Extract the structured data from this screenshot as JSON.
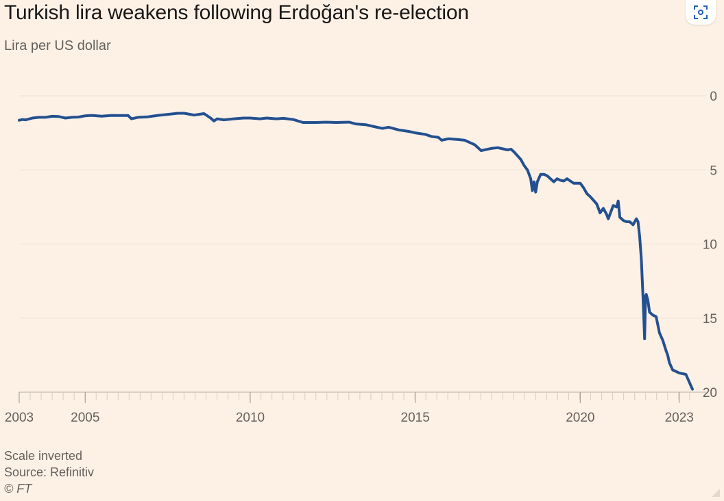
{
  "header": {
    "title": "Turkish lira weakens following Erdoğan's re-election",
    "subtitle": "Lira per US dollar"
  },
  "footer": {
    "note": "Scale inverted",
    "source": "Source: Refinitiv",
    "copyright": "© FT"
  },
  "icons": {
    "expand": "expand-view-icon",
    "resize": "resize-grip-icon"
  },
  "colors": {
    "background": "#fdf1e6",
    "line": "#24508f",
    "grid": "#ece0d4",
    "text": "#66605c"
  },
  "chart_data": {
    "type": "line",
    "title": "Turkish lira weakens following Erdoğan's re-election",
    "subtitle": "Lira per US dollar",
    "ylabel": "",
    "xlabel": "",
    "y_inverted": true,
    "ylim": [
      0,
      20
    ],
    "yticks": [
      0,
      5,
      10,
      15,
      20
    ],
    "xlim": [
      2003.0,
      2023.4
    ],
    "xticks": [
      {
        "value": 2003,
        "label": "2003"
      },
      {
        "value": 2005,
        "label": "2005"
      },
      {
        "value": 2010,
        "label": "2010"
      },
      {
        "value": 2015,
        "label": "2015"
      },
      {
        "value": 2020,
        "label": "2020"
      },
      {
        "value": 2023,
        "label": "2023"
      }
    ],
    "grid": true,
    "series": [
      {
        "name": "",
        "x": [
          2003.0,
          2003.1,
          2003.2,
          2003.4,
          2003.6,
          2003.8,
          2004.0,
          2004.2,
          2004.4,
          2004.6,
          2004.8,
          2005.0,
          2005.2,
          2005.5,
          2005.8,
          2006.0,
          2006.3,
          2006.4,
          2006.6,
          2006.9,
          2007.2,
          2007.5,
          2007.8,
          2008.0,
          2008.3,
          2008.6,
          2008.8,
          2008.9,
          2009.0,
          2009.2,
          2009.5,
          2009.8,
          2010.0,
          2010.3,
          2010.5,
          2010.8,
          2011.0,
          2011.3,
          2011.6,
          2011.8,
          2012.0,
          2012.3,
          2012.6,
          2013.0,
          2013.2,
          2013.5,
          2013.8,
          2014.0,
          2014.2,
          2014.5,
          2014.8,
          2015.0,
          2015.3,
          2015.5,
          2015.7,
          2015.8,
          2016.0,
          2016.3,
          2016.5,
          2016.8,
          2017.0,
          2017.2,
          2017.3,
          2017.5,
          2017.8,
          2017.9,
          2018.0,
          2018.2,
          2018.3,
          2018.4,
          2018.5,
          2018.55,
          2018.6,
          2018.65,
          2018.7,
          2018.8,
          2018.9,
          2019.0,
          2019.2,
          2019.3,
          2019.4,
          2019.5,
          2019.6,
          2019.7,
          2019.8,
          2020.0,
          2020.1,
          2020.2,
          2020.3,
          2020.5,
          2020.6,
          2020.7,
          2020.8,
          2020.85,
          2021.0,
          2021.1,
          2021.15,
          2021.2,
          2021.3,
          2021.4,
          2021.5,
          2021.6,
          2021.7,
          2021.75,
          2021.8,
          2021.85,
          2021.9,
          2021.95,
          2021.98,
          2022.0,
          2022.05,
          2022.1,
          2022.2,
          2022.3,
          2022.4,
          2022.5,
          2022.6,
          2022.65,
          2022.7,
          2022.8,
          2022.9,
          2023.0,
          2023.2,
          2023.4
        ],
        "values": [
          1.65,
          1.6,
          1.62,
          1.5,
          1.45,
          1.45,
          1.38,
          1.4,
          1.5,
          1.45,
          1.43,
          1.35,
          1.32,
          1.37,
          1.32,
          1.33,
          1.33,
          1.55,
          1.45,
          1.42,
          1.32,
          1.25,
          1.18,
          1.18,
          1.3,
          1.2,
          1.5,
          1.7,
          1.55,
          1.62,
          1.55,
          1.5,
          1.5,
          1.55,
          1.5,
          1.55,
          1.52,
          1.6,
          1.8,
          1.8,
          1.8,
          1.78,
          1.8,
          1.78,
          1.9,
          1.95,
          2.1,
          2.2,
          2.12,
          2.3,
          2.4,
          2.5,
          2.6,
          2.75,
          2.8,
          3.0,
          2.9,
          2.95,
          3.0,
          3.3,
          3.7,
          3.6,
          3.55,
          3.5,
          3.65,
          3.6,
          3.8,
          4.3,
          4.7,
          5.0,
          5.6,
          6.4,
          5.8,
          6.5,
          5.8,
          5.3,
          5.3,
          5.4,
          5.8,
          5.6,
          5.7,
          5.75,
          5.6,
          5.75,
          5.9,
          5.9,
          6.2,
          6.6,
          6.8,
          7.3,
          7.9,
          7.6,
          8.0,
          8.3,
          7.4,
          7.5,
          7.1,
          8.2,
          8.4,
          8.5,
          8.5,
          8.7,
          8.3,
          8.5,
          9.5,
          11.0,
          13.5,
          16.4,
          13.5,
          13.4,
          13.8,
          14.6,
          14.8,
          14.9,
          16.0,
          16.5,
          17.2,
          17.5,
          18.0,
          18.5,
          18.6,
          18.7,
          18.8,
          19.8
        ]
      }
    ]
  }
}
